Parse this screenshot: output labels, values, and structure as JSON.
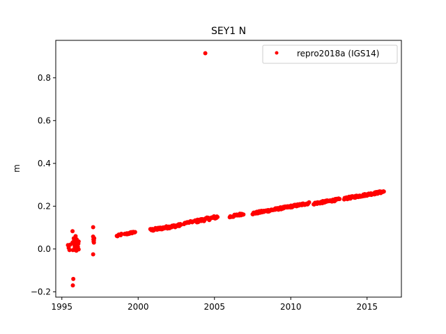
{
  "chart_data": {
    "type": "scatter",
    "title": "SEY1 N",
    "xlabel": "",
    "ylabel": "m",
    "xlim": [
      1994.6,
      2017.25
    ],
    "ylim": [
      -0.225,
      0.975
    ],
    "xticks": [
      1995,
      2000,
      2005,
      2010,
      2015
    ],
    "yticks": [
      -0.2,
      0.0,
      0.2,
      0.4,
      0.6,
      0.8
    ],
    "ytick_labels": [
      "−0.2",
      "0.0",
      "0.2",
      "0.4",
      "0.6",
      "0.8"
    ],
    "grid": false,
    "legend_position": "top-right",
    "series": [
      {
        "name": "repro2018a (IGS14)",
        "color": "#ff0000",
        "segments": [
          {
            "x0": 1998.6,
            "x1": 1998.9,
            "y0": 0.06,
            "y1": 0.068,
            "n": 8,
            "jitter": 0.004
          },
          {
            "x0": 1999.1,
            "x1": 1999.8,
            "y0": 0.068,
            "y1": 0.08,
            "n": 18,
            "jitter": 0.004
          },
          {
            "x0": 2000.8,
            "x1": 2002.8,
            "y0": 0.088,
            "y1": 0.112,
            "n": 60,
            "jitter": 0.006
          },
          {
            "x0": 2003.0,
            "x1": 2003.6,
            "y0": 0.12,
            "y1": 0.128,
            "n": 12,
            "jitter": 0.004
          },
          {
            "x0": 2003.7,
            "x1": 2005.2,
            "y0": 0.128,
            "y1": 0.15,
            "n": 40,
            "jitter": 0.007
          },
          {
            "x0": 2006.0,
            "x1": 2006.9,
            "y0": 0.15,
            "y1": 0.165,
            "n": 24,
            "jitter": 0.005
          },
          {
            "x0": 2007.5,
            "x1": 2011.2,
            "y0": 0.166,
            "y1": 0.214,
            "n": 110,
            "jitter": 0.005
          },
          {
            "x0": 2011.5,
            "x1": 2013.2,
            "y0": 0.212,
            "y1": 0.232,
            "n": 55,
            "jitter": 0.005
          },
          {
            "x0": 2013.5,
            "x1": 2016.1,
            "y0": 0.235,
            "y1": 0.268,
            "n": 90,
            "jitter": 0.005
          }
        ],
        "points": [
          [
            2004.4,
            0.915
          ],
          [
            1995.4,
            0.018
          ],
          [
            1995.45,
            0.005
          ],
          [
            1995.5,
            -0.005
          ],
          [
            1995.55,
            0.02
          ],
          [
            1995.7,
            0.083
          ],
          [
            1995.7,
            0.03
          ],
          [
            1995.72,
            -0.005
          ],
          [
            1995.75,
            -0.14
          ],
          [
            1995.72,
            -0.17
          ],
          [
            1995.78,
            0.05
          ],
          [
            1995.8,
            0.04
          ],
          [
            1995.82,
            0.02
          ],
          [
            1995.85,
            0.01
          ],
          [
            1995.85,
            0.0
          ],
          [
            1995.88,
            -0.005
          ],
          [
            1995.9,
            0.06
          ],
          [
            1995.9,
            0.03
          ],
          [
            1995.93,
            0.015
          ],
          [
            1995.95,
            0.005
          ],
          [
            1995.97,
            0.045
          ],
          [
            1996.0,
            0.02
          ],
          [
            1996.0,
            0.0
          ],
          [
            1996.03,
            0.03
          ],
          [
            1996.05,
            0.01
          ],
          [
            1996.08,
            0.025
          ],
          [
            1996.1,
            -0.002
          ],
          [
            1996.1,
            0.035
          ],
          [
            1995.8,
            -0.003
          ],
          [
            1995.95,
            -0.008
          ],
          [
            1997.05,
            0.102
          ],
          [
            1997.05,
            0.058
          ],
          [
            1997.07,
            0.045
          ],
          [
            1997.08,
            0.035
          ],
          [
            1997.1,
            0.03
          ],
          [
            1997.12,
            0.05
          ],
          [
            1997.1,
            0.04
          ],
          [
            1997.05,
            -0.025
          ]
        ]
      }
    ]
  }
}
